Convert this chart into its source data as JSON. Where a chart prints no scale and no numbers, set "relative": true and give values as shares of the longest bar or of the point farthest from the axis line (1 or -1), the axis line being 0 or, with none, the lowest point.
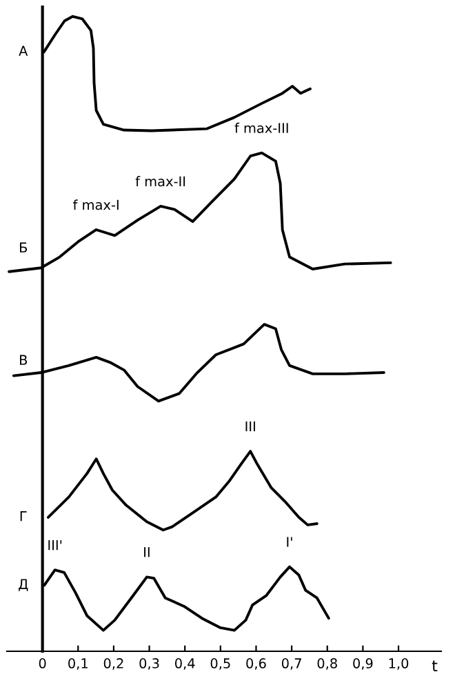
{
  "chart_data": {
    "type": "line",
    "relative": true,
    "xlabel": "t",
    "xlim": [
      -0.1,
      1.12
    ],
    "xticks": [
      {
        "value": 0,
        "label": "0"
      },
      {
        "value": 0.1,
        "label": "0,1"
      },
      {
        "value": 0.2,
        "label": "0,2"
      },
      {
        "value": 0.3,
        "label": "0,3"
      },
      {
        "value": 0.4,
        "label": "0,4"
      },
      {
        "value": 0.5,
        "label": "0,5"
      },
      {
        "value": 0.6,
        "label": "0,6"
      },
      {
        "value": 0.7,
        "label": "0,7"
      },
      {
        "value": 0.8,
        "label": "0,8"
      },
      {
        "value": 0.9,
        "label": "0,9"
      },
      {
        "value": 1.0,
        "label": "1,0"
      }
    ],
    "tick_labels": "x",
    "marker": "none",
    "line_style": "solid",
    "series": [
      {
        "name": "А",
        "color": "#000000",
        "x": [
          0.004,
          0.035,
          0.062,
          0.085,
          0.112,
          0.136,
          0.143,
          0.145,
          0.151,
          0.171,
          0.229,
          0.306,
          0.461,
          0.539,
          0.616,
          0.674,
          0.702,
          0.725,
          0.752
        ],
        "values": [
          0.944,
          0.971,
          0.993,
          1.0,
          0.996,
          0.978,
          0.95,
          0.895,
          0.852,
          0.83,
          0.821,
          0.82,
          0.823,
          0.841,
          0.863,
          0.879,
          0.89,
          0.879,
          0.886
        ]
      },
      {
        "name": "Б",
        "color": "#000000",
        "x": [
          -0.094,
          -0.004,
          0.048,
          0.1,
          0.151,
          0.203,
          0.267,
          0.332,
          0.371,
          0.422,
          0.474,
          0.539,
          0.584,
          0.616,
          0.655,
          0.668,
          0.674,
          0.694,
          0.759,
          0.849,
          0.978
        ],
        "values": [
          0.598,
          0.604,
          0.621,
          0.645,
          0.664,
          0.655,
          0.679,
          0.701,
          0.696,
          0.677,
          0.707,
          0.744,
          0.78,
          0.785,
          0.772,
          0.737,
          0.664,
          0.621,
          0.602,
          0.61,
          0.612
        ]
      },
      {
        "name": "В",
        "color": "#000000",
        "x": [
          -0.081,
          -0.004,
          0.074,
          0.151,
          0.19,
          0.229,
          0.267,
          0.326,
          0.384,
          0.435,
          0.487,
          0.565,
          0.623,
          0.655,
          0.671,
          0.694,
          0.759,
          0.849,
          0.959
        ],
        "values": [
          0.434,
          0.439,
          0.45,
          0.463,
          0.455,
          0.443,
          0.417,
          0.394,
          0.406,
          0.439,
          0.467,
          0.484,
          0.515,
          0.508,
          0.475,
          0.45,
          0.437,
          0.437,
          0.439
        ]
      },
      {
        "name": "Г",
        "color": "#000000",
        "x": [
          0.016,
          0.074,
          0.125,
          0.151,
          0.171,
          0.196,
          0.235,
          0.293,
          0.339,
          0.364,
          0.422,
          0.487,
          0.526,
          0.558,
          0.584,
          0.603,
          0.642,
          0.681,
          0.72,
          0.745,
          0.771
        ],
        "values": [
          0.211,
          0.243,
          0.28,
          0.303,
          0.28,
          0.254,
          0.23,
          0.204,
          0.191,
          0.196,
          0.218,
          0.243,
          0.269,
          0.295,
          0.315,
          0.295,
          0.258,
          0.236,
          0.211,
          0.199,
          0.201
        ]
      },
      {
        "name": "Д",
        "color": "#000000",
        "x": [
          0.005,
          0.035,
          0.061,
          0.093,
          0.125,
          0.171,
          0.203,
          0.255,
          0.293,
          0.313,
          0.345,
          0.397,
          0.448,
          0.5,
          0.539,
          0.571,
          0.59,
          0.629,
          0.668,
          0.694,
          0.72,
          0.739,
          0.771,
          0.804
        ],
        "values": [
          0.104,
          0.128,
          0.124,
          0.092,
          0.056,
          0.033,
          0.049,
          0.088,
          0.117,
          0.115,
          0.084,
          0.071,
          0.052,
          0.037,
          0.033,
          0.049,
          0.073,
          0.088,
          0.117,
          0.133,
          0.12,
          0.096,
          0.084,
          0.052
        ]
      }
    ],
    "annotations": [
      {
        "text": "f max-I",
        "x": 0.151,
        "y": 0.664
      },
      {
        "text": "f max-II",
        "x": 0.332,
        "y": 0.701
      },
      {
        "text": "f max-III",
        "x": 0.616,
        "y": 0.785
      },
      {
        "text": "III",
        "x": 0.584,
        "y": 0.315
      },
      {
        "text": "III'",
        "x": 0.035,
        "y": 0.128
      },
      {
        "text": "II",
        "x": 0.293,
        "y": 0.117
      },
      {
        "text": "I'",
        "x": 0.694,
        "y": 0.133
      }
    ]
  }
}
